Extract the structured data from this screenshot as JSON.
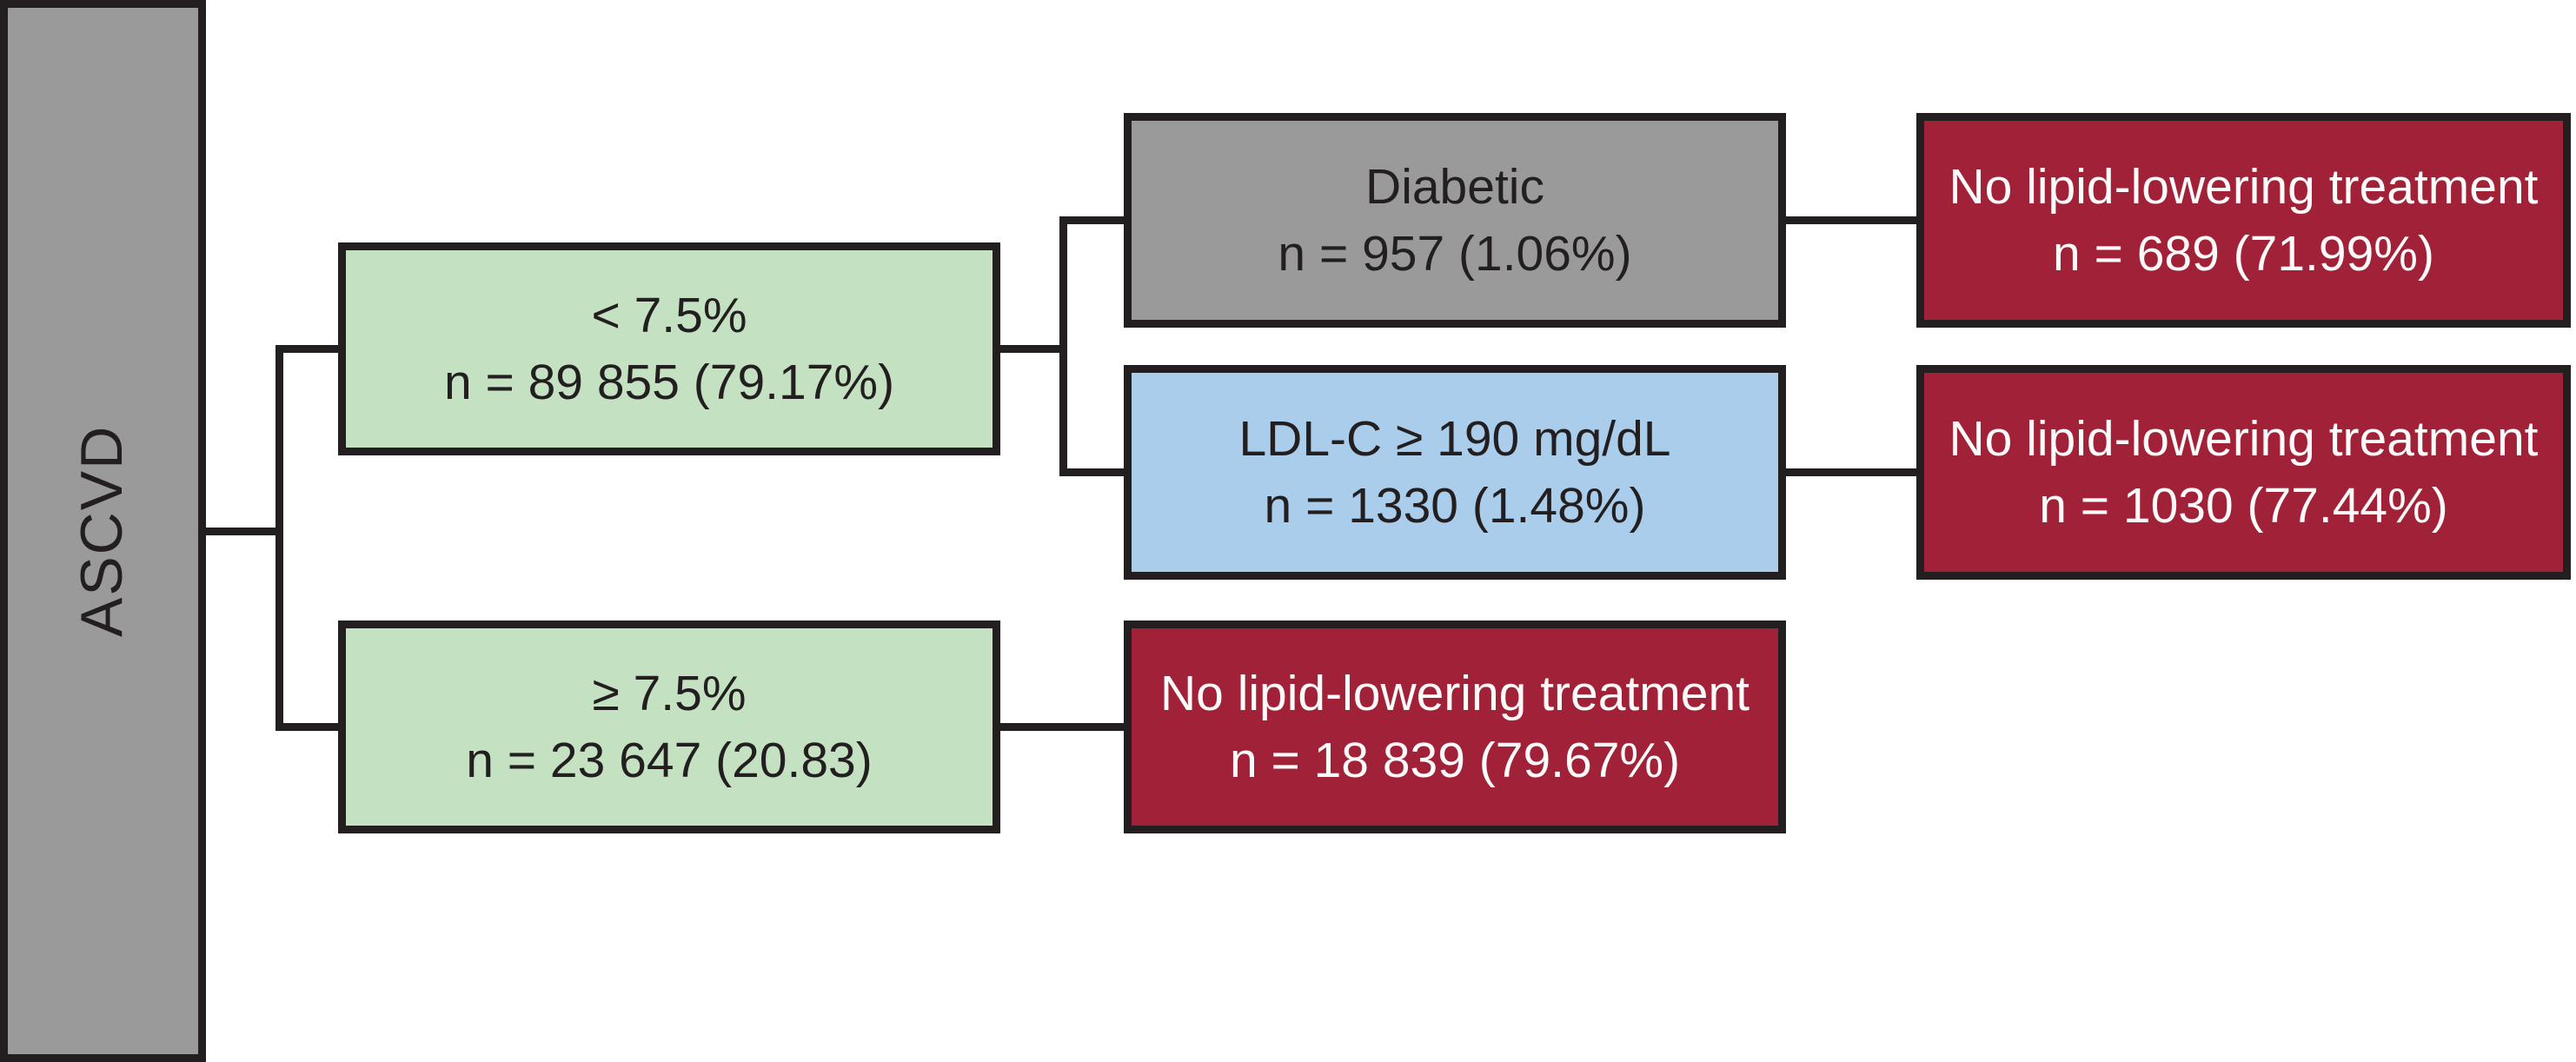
{
  "diagram": {
    "type": "flowchart",
    "root": {
      "label": "ASCVD"
    },
    "nodes": [
      {
        "id": "lt75",
        "line1": "< 7.5%",
        "line2": "n = 89 855 (79.17%)",
        "color_key": "green"
      },
      {
        "id": "ge75",
        "line1": "≥ 7.5%",
        "line2": "n = 23 647 (20.83)",
        "color_key": "green"
      },
      {
        "id": "diabetic",
        "line1": "Diabetic",
        "line2": "n = 957 (1.06%)",
        "color_key": "gray"
      },
      {
        "id": "ldl",
        "line1": "LDL-C ≥ 190 mg/dL",
        "line2": "n = 1330 (1.48%)",
        "color_key": "blue"
      },
      {
        "id": "red1",
        "line1": "No lipid-lowering treatment",
        "line2": "n = 689 (71.99%)",
        "color_key": "red"
      },
      {
        "id": "red2",
        "line1": "No lipid-lowering treatment",
        "line2": "n = 1030 (77.44%)",
        "color_key": "red"
      },
      {
        "id": "red3",
        "line1": "No lipid-lowering treatment",
        "line2": "n = 18 839 (79.67%)",
        "color_key": "red"
      }
    ],
    "edges": [
      {
        "from": "root",
        "to": "lt75"
      },
      {
        "from": "root",
        "to": "ge75"
      },
      {
        "from": "lt75",
        "to": "diabetic"
      },
      {
        "from": "lt75",
        "to": "ldl"
      },
      {
        "from": "diabetic",
        "to": "red1"
      },
      {
        "from": "ldl",
        "to": "red2"
      },
      {
        "from": "ge75",
        "to": "red3"
      }
    ],
    "colors": {
      "boxes": {
        "gray": {
          "fill": "#9a9a9a",
          "text": "#231f20"
        },
        "green": {
          "fill": "#c4e2c2",
          "text": "#231f20"
        },
        "blue": {
          "fill": "#a9cdeb",
          "text": "#231f20"
        },
        "red": {
          "fill": "#a02138",
          "text": "#fdfbf9"
        }
      },
      "border": "#231f20",
      "background": "#ffffff"
    }
  }
}
